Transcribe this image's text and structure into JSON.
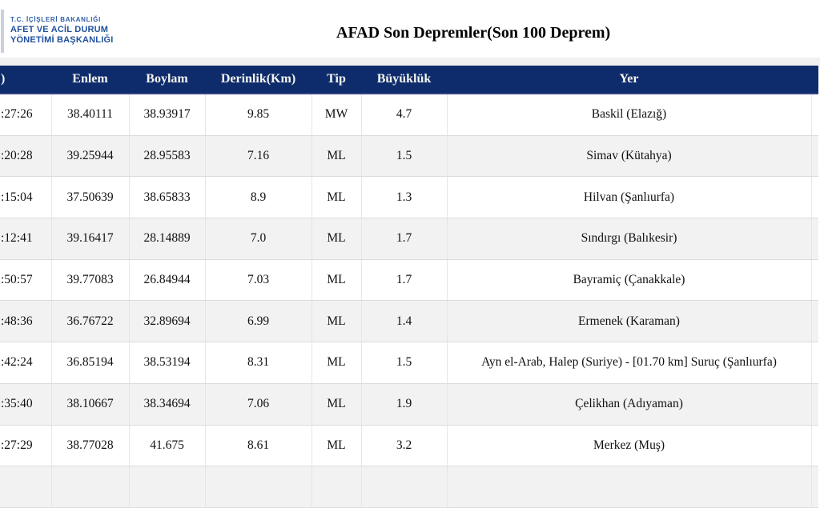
{
  "logo": {
    "line1": "T.C. İÇİŞLERİ BAKANLIĞI",
    "line2": "AFET VE ACİL DURUM",
    "line3": "YÖNETİMİ BAŞKANLIĞI"
  },
  "header": {
    "title": "AFAD Son Depremler(Son 100 Deprem)"
  },
  "colors": {
    "table_header_bg": "#0e2c6b",
    "table_header_text": "#f5f5f0",
    "stripe_row_bg": "#f2f2f2",
    "logo_blue": "#20509e",
    "top_strip_gray": "#f1f1f1"
  },
  "table": {
    "columns": [
      ")",
      "Enlem",
      "Boylam",
      "Derinlik(Km)",
      "Tip",
      "Büyüklük",
      "Yer",
      ""
    ],
    "rows": [
      {
        "time": ":27:26",
        "enlem": "38.40111",
        "boylam": "38.93917",
        "derinlik": "9.85",
        "tip": "MW",
        "buyukluk": "4.7",
        "yer": "Baskil (Elazığ)",
        "extra": ""
      },
      {
        "time": ":20:28",
        "enlem": "39.25944",
        "boylam": "28.95583",
        "derinlik": "7.16",
        "tip": "ML",
        "buyukluk": "1.5",
        "yer": "Simav (Kütahya)",
        "extra": ""
      },
      {
        "time": ":15:04",
        "enlem": "37.50639",
        "boylam": "38.65833",
        "derinlik": "8.9",
        "tip": "ML",
        "buyukluk": "1.3",
        "yer": "Hilvan (Şanlıurfa)",
        "extra": ""
      },
      {
        "time": ":12:41",
        "enlem": "39.16417",
        "boylam": "28.14889",
        "derinlik": "7.0",
        "tip": "ML",
        "buyukluk": "1.7",
        "yer": "Sındırgı (Balıkesir)",
        "extra": ""
      },
      {
        "time": ":50:57",
        "enlem": "39.77083",
        "boylam": "26.84944",
        "derinlik": "7.03",
        "tip": "ML",
        "buyukluk": "1.7",
        "yer": "Bayramiç (Çanakkale)",
        "extra": ""
      },
      {
        "time": ":48:36",
        "enlem": "36.76722",
        "boylam": "32.89694",
        "derinlik": "6.99",
        "tip": "ML",
        "buyukluk": "1.4",
        "yer": "Ermenek (Karaman)",
        "extra": ""
      },
      {
        "time": ":42:24",
        "enlem": "36.85194",
        "boylam": "38.53194",
        "derinlik": "8.31",
        "tip": "ML",
        "buyukluk": "1.5",
        "yer": "Ayn el-Arab, Halep (Suriye) - [01.70 km] Suruç (Şanlıurfa)",
        "extra": ""
      },
      {
        "time": ":35:40",
        "enlem": "38.10667",
        "boylam": "38.34694",
        "derinlik": "7.06",
        "tip": "ML",
        "buyukluk": "1.9",
        "yer": "Çelikhan (Adıyaman)",
        "extra": ""
      },
      {
        "time": ":27:29",
        "enlem": "38.77028",
        "boylam": "41.675",
        "derinlik": "8.61",
        "tip": "ML",
        "buyukluk": "3.2",
        "yer": "Merkez (Muş)",
        "extra": ""
      }
    ]
  }
}
